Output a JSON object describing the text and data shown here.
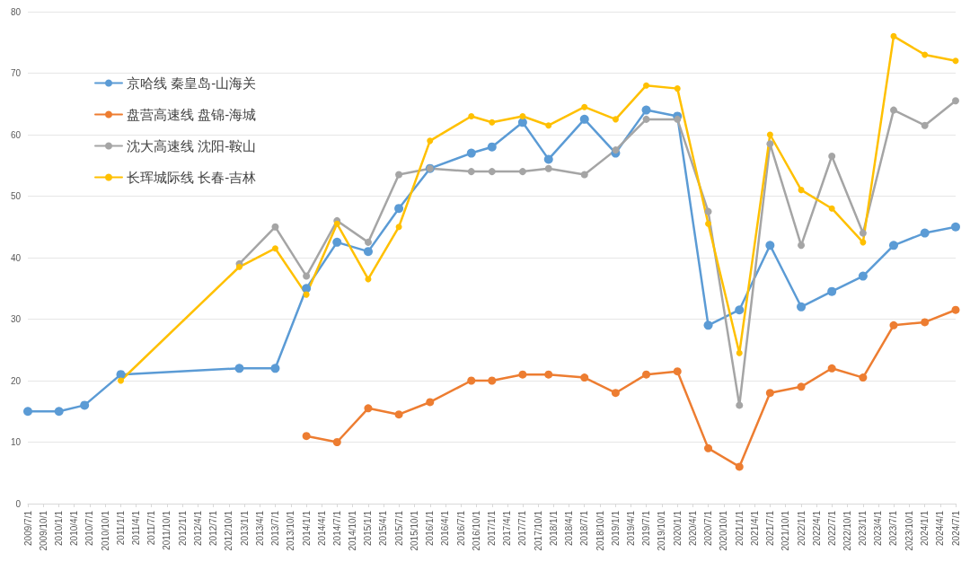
{
  "chart_data": {
    "type": "line",
    "x": [
      "2009-07-01",
      "2010-01-01",
      "2010-06-01",
      "2011-01-01",
      "2012-12-01",
      "2013-07-01",
      "2014-01-01",
      "2014-07-01",
      "2015-01-01",
      "2015-07-01",
      "2016-01-01",
      "2016-09-01",
      "2017-01-01",
      "2017-07-01",
      "2017-12-01",
      "2018-07-01",
      "2019-01-01",
      "2019-07-01",
      "2020-01-01",
      "2020-07-01",
      "2021-01-01",
      "2021-07-01",
      "2022-01-01",
      "2022-07-01",
      "2023-01-01",
      "2023-07-01",
      "2024-01-01",
      "2024-07-01"
    ],
    "series": [
      {
        "name": "京哈线 秦皇岛-山海关",
        "color": "#5b9bd5",
        "values": [
          15,
          15,
          16,
          21,
          22,
          22,
          35,
          42.5,
          41,
          48,
          54.5,
          57,
          58,
          62,
          56,
          62.5,
          57,
          64,
          63,
          29,
          31.5,
          42,
          32,
          34.5,
          37,
          42,
          44,
          45
        ]
      },
      {
        "name": "盘营高速线 盘锦-海城",
        "color": "#ed7d31",
        "values": [
          null,
          null,
          null,
          null,
          null,
          null,
          11,
          10,
          15.5,
          14.5,
          16.5,
          20,
          20,
          21,
          21,
          20.5,
          18,
          21,
          21.5,
          9,
          6,
          18,
          19,
          22,
          20.5,
          29,
          29.5,
          31.5
        ]
      },
      {
        "name": "沈大高速线 沈阳-鞍山",
        "color": "#a5a5a5",
        "values": [
          null,
          null,
          null,
          null,
          39,
          45,
          37,
          46,
          42.5,
          53.5,
          54.5,
          54,
          54,
          54,
          54.5,
          53.5,
          57.5,
          62.5,
          62.5,
          47.5,
          16,
          58.5,
          42,
          56.5,
          44,
          64,
          61.5,
          65.5
        ]
      },
      {
        "name": "长珲城际线 长春-吉林",
        "color": "#ffc000",
        "values": [
          null,
          null,
          null,
          20,
          38.5,
          41.5,
          34,
          45.5,
          36.5,
          45,
          59,
          63,
          62,
          63,
          61.5,
          64.5,
          62.5,
          68,
          67.5,
          45.5,
          24.5,
          60,
          51,
          48,
          42.5,
          76,
          73,
          72
        ]
      }
    ],
    "xlim": [
      "2009-07-01",
      "2024-07-01"
    ],
    "xticks": [
      {
        "value": "2009-07-01",
        "label": "2009/7/1"
      },
      {
        "value": "2009-10-01",
        "label": "2009/10/1"
      },
      {
        "value": "2010-01-01",
        "label": "2010/1/1"
      },
      {
        "value": "2010-04-01",
        "label": "2010/4/1"
      },
      {
        "value": "2010-07-01",
        "label": "2010/7/1"
      },
      {
        "value": "2010-10-01",
        "label": "2010/10/1"
      },
      {
        "value": "2011-01-01",
        "label": "2011/1/1"
      },
      {
        "value": "2011-04-01",
        "label": "2011/4/1"
      },
      {
        "value": "2011-07-01",
        "label": "2011/7/1"
      },
      {
        "value": "2011-10-01",
        "label": "2011/10/1"
      },
      {
        "value": "2012-01-01",
        "label": "2012/1/1"
      },
      {
        "value": "2012-04-01",
        "label": "2012/4/1"
      },
      {
        "value": "2012-07-01",
        "label": "2012/7/1"
      },
      {
        "value": "2012-10-01",
        "label": "2012/10/1"
      },
      {
        "value": "2013-01-01",
        "label": "2013/1/1"
      },
      {
        "value": "2013-04-01",
        "label": "2013/4/1"
      },
      {
        "value": "2013-07-01",
        "label": "2013/7/1"
      },
      {
        "value": "2013-10-01",
        "label": "2013/10/1"
      },
      {
        "value": "2014-01-01",
        "label": "2014/1/1"
      },
      {
        "value": "2014-04-01",
        "label": "2014/4/1"
      },
      {
        "value": "2014-07-01",
        "label": "2014/7/1"
      },
      {
        "value": "2014-10-01",
        "label": "2014/10/1"
      },
      {
        "value": "2015-01-01",
        "label": "2015/1/1"
      },
      {
        "value": "2015-04-01",
        "label": "2015/4/1"
      },
      {
        "value": "2015-07-01",
        "label": "2015/7/1"
      },
      {
        "value": "2015-10-01",
        "label": "2015/10/1"
      },
      {
        "value": "2016-01-01",
        "label": "2016/1/1"
      },
      {
        "value": "2016-04-01",
        "label": "2016/4/1"
      },
      {
        "value": "2016-07-01",
        "label": "2016/7/1"
      },
      {
        "value": "2016-10-01",
        "label": "2016/10/1"
      },
      {
        "value": "2017-01-01",
        "label": "2017/1/1"
      },
      {
        "value": "2017-04-01",
        "label": "2017/4/1"
      },
      {
        "value": "2017-07-01",
        "label": "2017/7/1"
      },
      {
        "value": "2017-10-01",
        "label": "2017/10/1"
      },
      {
        "value": "2018-01-01",
        "label": "2018/1/1"
      },
      {
        "value": "2018-04-01",
        "label": "2018/4/1"
      },
      {
        "value": "2018-07-01",
        "label": "2018/7/1"
      },
      {
        "value": "2018-10-01",
        "label": "2018/10/1"
      },
      {
        "value": "2019-01-01",
        "label": "2019/1/1"
      },
      {
        "value": "2019-04-01",
        "label": "2019/4/1"
      },
      {
        "value": "2019-07-01",
        "label": "2019/7/1"
      },
      {
        "value": "2019-10-01",
        "label": "2019/10/1"
      },
      {
        "value": "2020-01-01",
        "label": "2020/1/1"
      },
      {
        "value": "2020-04-01",
        "label": "2020/4/1"
      },
      {
        "value": "2020-07-01",
        "label": "2020/7/1"
      },
      {
        "value": "2020-10-01",
        "label": "2020/10/1"
      },
      {
        "value": "2021-01-01",
        "label": "2021/1/1"
      },
      {
        "value": "2021-04-01",
        "label": "2021/4/1"
      },
      {
        "value": "2021-07-01",
        "label": "2021/7/1"
      },
      {
        "value": "2021-10-01",
        "label": "2021/10/1"
      },
      {
        "value": "2022-01-01",
        "label": "2022/1/1"
      },
      {
        "value": "2022-04-01",
        "label": "2022/4/1"
      },
      {
        "value": "2022-07-01",
        "label": "2022/7/1"
      },
      {
        "value": "2022-10-01",
        "label": "2022/10/1"
      },
      {
        "value": "2023-01-01",
        "label": "2023/1/1"
      },
      {
        "value": "2023-04-01",
        "label": "2023/4/1"
      },
      {
        "value": "2023-07-01",
        "label": "2023/7/1"
      },
      {
        "value": "2023-10-01",
        "label": "2023/10/1"
      },
      {
        "value": "2024-01-01",
        "label": "2024/1/1"
      },
      {
        "value": "2024-04-01",
        "label": "2024/4/1"
      },
      {
        "value": "2024-07-01",
        "label": "2024/7/1"
      }
    ],
    "ylim": [
      0,
      80
    ],
    "yticks": [
      0,
      10,
      20,
      30,
      40,
      50,
      60,
      70,
      80
    ],
    "grid": "y",
    "legend": "top left",
    "marker": "circle",
    "line_style": "solid"
  }
}
